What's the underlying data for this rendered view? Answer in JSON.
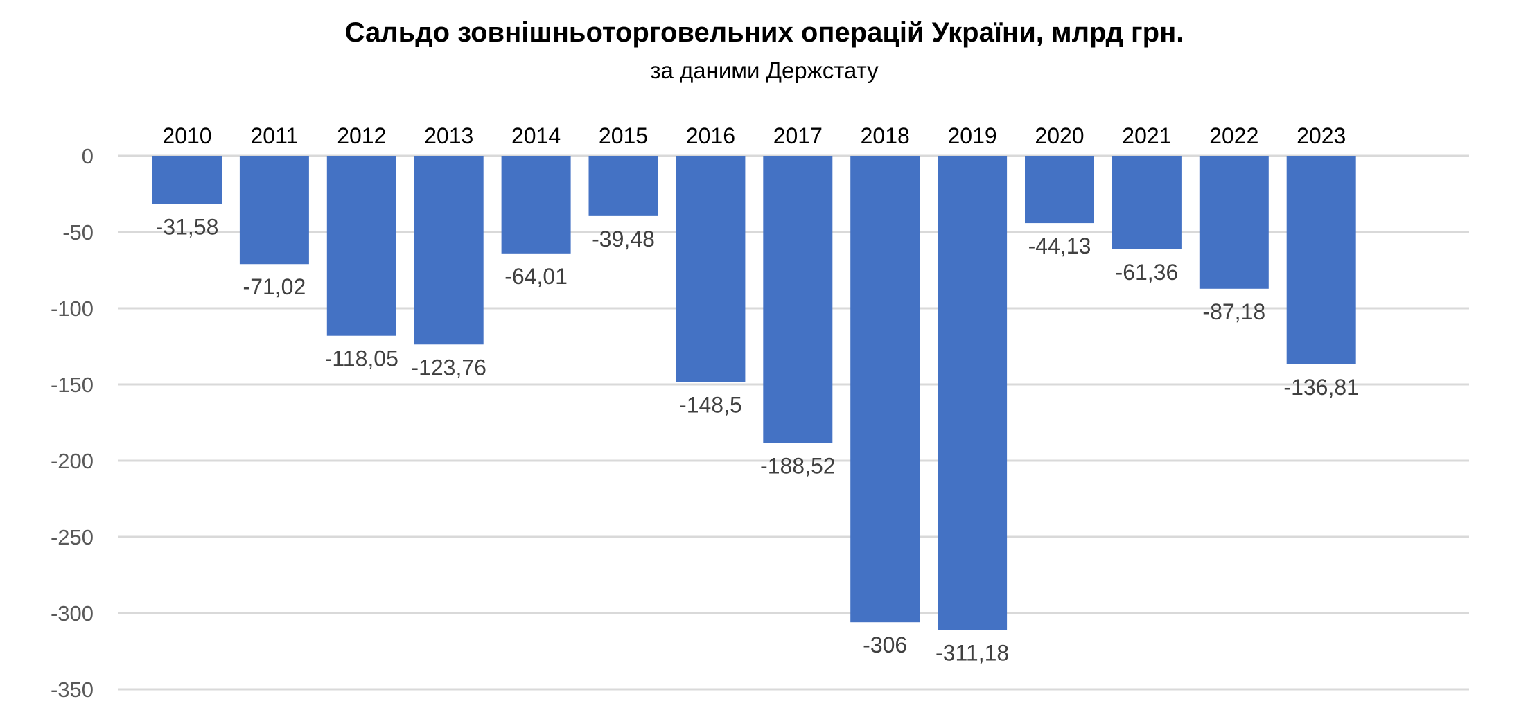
{
  "chart_data": {
    "type": "bar",
    "title": "Сальдо зовнішньоторговельних операцій України, млрд грн.",
    "subtitle": "за даними Держстату",
    "xlabel": "",
    "ylabel": "",
    "categories": [
      "2010",
      "2011",
      "2012",
      "2013",
      "2014",
      "2015",
      "2016",
      "2017",
      "2018",
      "2019",
      "2020",
      "2021",
      "2022",
      "2023"
    ],
    "values": [
      -31.58,
      -71.02,
      -118.05,
      -123.76,
      -64.01,
      -39.48,
      -148.5,
      -188.52,
      -306,
      -311.18,
      -44.13,
      -61.36,
      -87.18,
      -136.81
    ],
    "value_labels": [
      "-31,58",
      "-71,02",
      "-118,05",
      "-123,76",
      "-64,01",
      "-39,48",
      "-148,5",
      "-188,52",
      "-306",
      "-311,18",
      "-44,13",
      "-61,36",
      "-87,18",
      "-136,81"
    ],
    "y_ticks": [
      0,
      -50,
      -100,
      -150,
      -200,
      -250,
      -300,
      -350
    ],
    "y_tick_labels": [
      "0",
      "-50",
      "-100",
      "-150",
      "-200",
      "-250",
      "-300",
      "-350"
    ],
    "ylim": [
      -350,
      0
    ],
    "x_axis_position": "top",
    "grid": true,
    "legend": "none",
    "colors": {
      "bar": "#4472c4",
      "grid": "#d9d9d9",
      "tick_text": "#595959",
      "label_text": "#404040"
    }
  }
}
